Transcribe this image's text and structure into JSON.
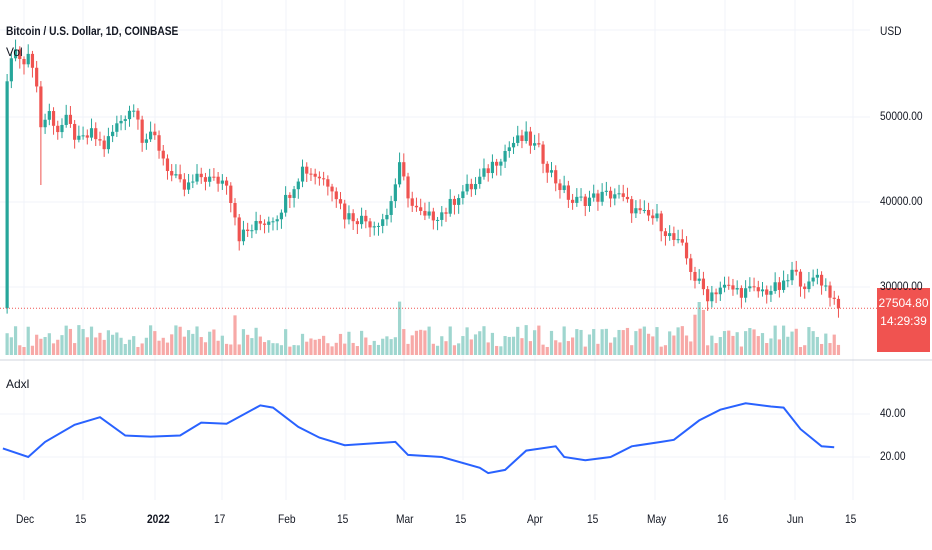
{
  "header": {
    "symbol_title": "Bitcoin / U.S. Dollar, 1D, COINBASE",
    "volume_label": "Vol",
    "currency": "USD",
    "indicator_label": "Adxl"
  },
  "last_price": {
    "value": "27504.80",
    "countdown": "14:29:39"
  },
  "colors": {
    "up": "#26a69a",
    "down": "#ef5350",
    "adx": "#2962ff",
    "up_vol": "#9fd6cf",
    "down_vol": "#f7a9a7"
  },
  "chart_data": [
    {
      "type": "candlestick",
      "title": "Bitcoin / U.S. Dollar, 1D, COINBASE",
      "ylabel": "USD",
      "ylim": [
        22500,
        62000
      ],
      "y_ticks": [
        "50000.00",
        "40000.00",
        "30000.00"
      ],
      "x_ticks": [
        "Dec",
        "15",
        "2022",
        "17",
        "Feb",
        "15",
        "Mar",
        "15",
        "Apr",
        "15",
        "May",
        "16",
        "Jun",
        "15"
      ],
      "close_anchors_day_offset_from_dec1": [
        [
          -4,
          54000
        ],
        [
          -3,
          57000
        ],
        [
          -1,
          57500
        ],
        [
          0,
          57000
        ],
        [
          2,
          56500
        ],
        [
          3,
          53500
        ],
        [
          4,
          49000
        ],
        [
          6,
          50500
        ],
        [
          8,
          48500
        ],
        [
          10,
          49500
        ],
        [
          13,
          47000
        ],
        [
          16,
          48000
        ],
        [
          19,
          46500
        ],
        [
          22,
          49000
        ],
        [
          25,
          51000
        ],
        [
          27,
          50500
        ],
        [
          28,
          47500
        ],
        [
          31,
          47500
        ],
        [
          35,
          43000
        ],
        [
          38,
          41500
        ],
        [
          42,
          43000
        ],
        [
          45,
          42500
        ],
        [
          48,
          42500
        ],
        [
          50,
          38500
        ],
        [
          51,
          36000
        ],
        [
          53,
          36500
        ],
        [
          56,
          37500
        ],
        [
          60,
          38500
        ],
        [
          66,
          44000
        ],
        [
          70,
          43000
        ],
        [
          73,
          42000
        ],
        [
          76,
          38500
        ],
        [
          80,
          38000
        ],
        [
          83,
          37500
        ],
        [
          86,
          38500
        ],
        [
          89,
          44000
        ],
        [
          92,
          39500
        ],
        [
          95,
          38000
        ],
        [
          100,
          39000
        ],
        [
          103,
          41000
        ],
        [
          107,
          42000
        ],
        [
          111,
          44500
        ],
        [
          116,
          47000
        ],
        [
          119,
          47500
        ],
        [
          122,
          46000
        ],
        [
          126,
          42500
        ],
        [
          130,
          40000
        ],
        [
          135,
          40500
        ],
        [
          140,
          41000
        ],
        [
          146,
          38500
        ],
        [
          150,
          38000
        ],
        [
          153,
          36000
        ],
        [
          156,
          34500
        ],
        [
          159,
          31000
        ],
        [
          162,
          29000
        ],
        [
          165,
          30000
        ],
        [
          170,
          29500
        ],
        [
          175,
          29500
        ],
        [
          180,
          30000
        ],
        [
          182,
          31700
        ],
        [
          186,
          30000
        ],
        [
          188,
          31500
        ],
        [
          190,
          30000
        ],
        [
          192,
          28500
        ],
        [
          193,
          27504.8
        ]
      ]
    },
    {
      "type": "line",
      "title": "Adxl",
      "y_ticks": [
        "40.00",
        "20.00"
      ],
      "ylim": [
        10,
        48
      ],
      "anchors_day_offset_from_dec1": [
        [
          -5,
          24
        ],
        [
          1,
          20
        ],
        [
          5,
          27
        ],
        [
          12,
          35
        ],
        [
          18,
          38.5
        ],
        [
          24,
          30
        ],
        [
          30,
          29.5
        ],
        [
          37,
          30
        ],
        [
          42,
          36
        ],
        [
          48,
          35.5
        ],
        [
          56,
          44
        ],
        [
          59,
          43
        ],
        [
          65,
          34
        ],
        [
          70,
          29
        ],
        [
          76,
          25.5
        ],
        [
          88,
          27
        ],
        [
          91,
          21
        ],
        [
          99,
          20
        ],
        [
          108,
          15
        ],
        [
          110,
          12.5
        ],
        [
          114,
          14
        ],
        [
          119,
          23
        ],
        [
          126,
          25
        ],
        [
          128,
          20
        ],
        [
          133,
          18.5
        ],
        [
          139,
          20
        ],
        [
          144,
          25
        ],
        [
          151,
          27
        ],
        [
          154,
          28
        ],
        [
          160,
          37
        ],
        [
          165,
          42
        ],
        [
          171,
          45
        ],
        [
          177,
          43.5
        ],
        [
          180,
          43
        ],
        [
          184,
          33
        ],
        [
          189,
          25
        ],
        [
          192,
          24.5
        ]
      ]
    }
  ]
}
